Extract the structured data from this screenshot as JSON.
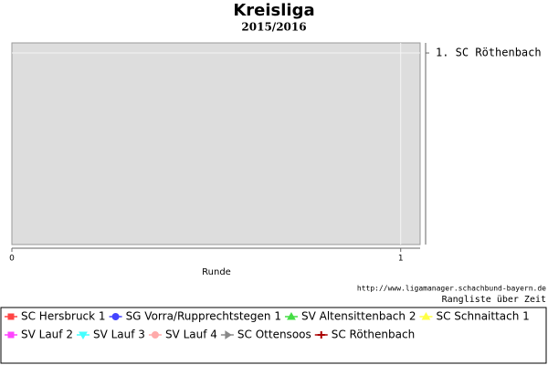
{
  "chart_data": {
    "type": "line",
    "title": "Kreisliga",
    "subtitle": "2015/2016",
    "x_label": "Runde",
    "source": "http://www.ligamanager.schachbund-bayern.de",
    "caption": "Rangliste über Zeit",
    "x": [
      0,
      1
    ],
    "xlim": [
      0,
      1.05
    ],
    "xticks": [
      0,
      1
    ],
    "ylim": [
      10.5,
      0.5
    ],
    "yticks": [
      {
        "value": 1,
        "label": "1. SC Röthenbach"
      }
    ],
    "grid": true,
    "series": [
      {
        "name": "SC Hersbruck 1",
        "color": "#ff4444",
        "marker": "square",
        "values": [
          null,
          null
        ]
      },
      {
        "name": "SG Vorra/Rupprechtstegen 1",
        "color": "#4444ff",
        "marker": "circle",
        "values": [
          null,
          null
        ]
      },
      {
        "name": "SV Altensittenbach 2",
        "color": "#44dd44",
        "marker": "triangle",
        "values": [
          null,
          null
        ]
      },
      {
        "name": "SC Schnaittach 1",
        "color": "#ffff44",
        "marker": "triangle",
        "values": [
          null,
          null
        ]
      },
      {
        "name": "SV Lauf 2",
        "color": "#ff44ff",
        "marker": "square",
        "values": [
          null,
          null
        ]
      },
      {
        "name": "SV Lauf 3",
        "color": "#44ffff",
        "marker": "triangle-down",
        "values": [
          null,
          null
        ]
      },
      {
        "name": "SV Lauf 4",
        "color": "#ffaaaa",
        "marker": "circle",
        "values": [
          null,
          null
        ]
      },
      {
        "name": "SC Ottensoos",
        "color": "#888888",
        "marker": "arrow",
        "values": [
          null,
          null
        ]
      },
      {
        "name": "SC Röthenbach",
        "color": "#aa0000",
        "marker": "plus",
        "values": [
          null,
          null
        ]
      }
    ]
  }
}
